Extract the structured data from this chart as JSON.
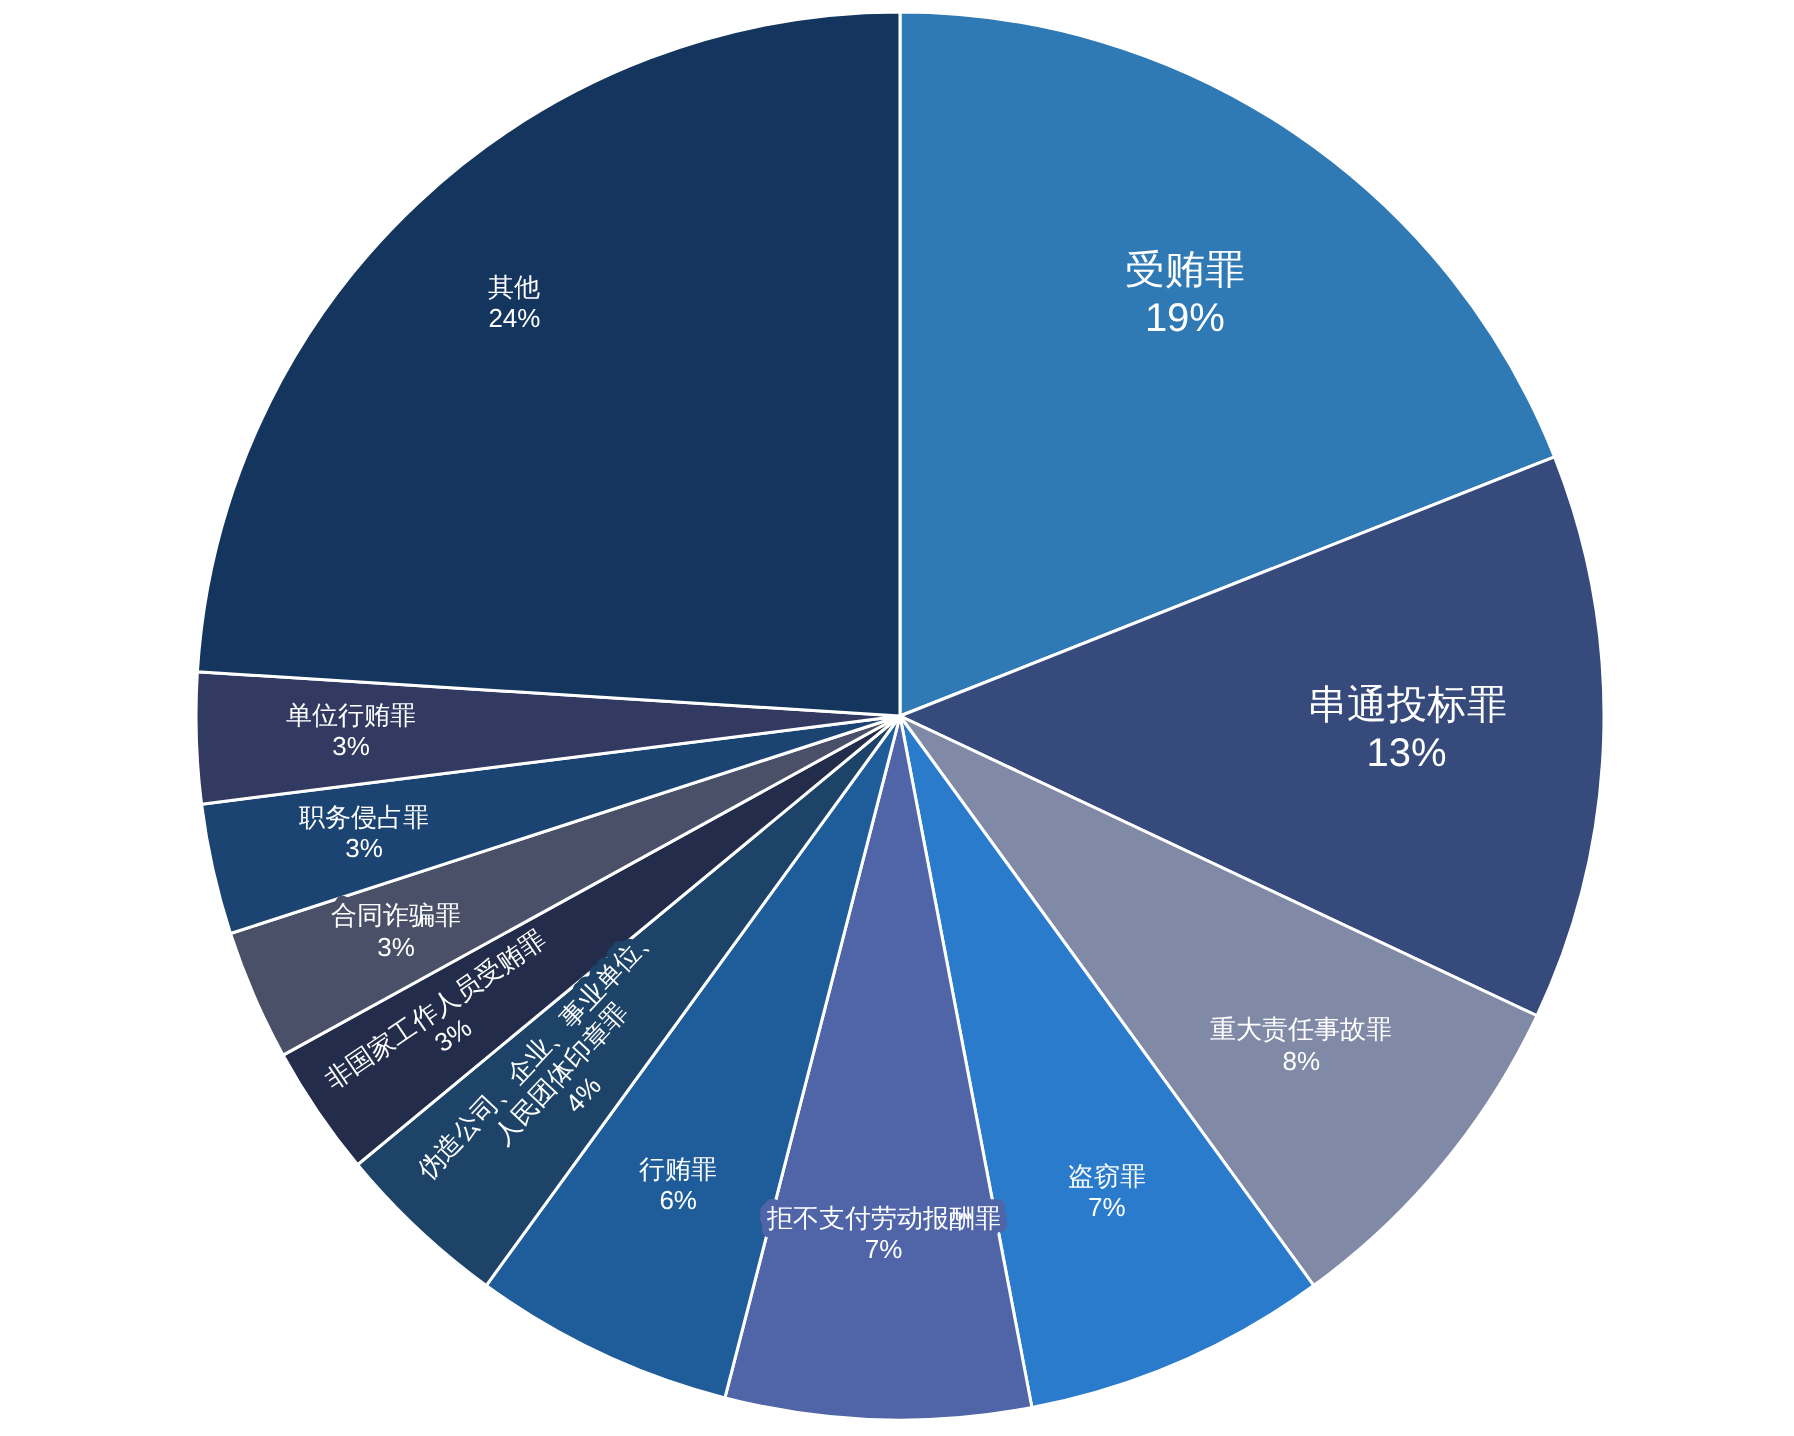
{
  "chart_data": {
    "type": "pie",
    "categories": [
      "受贿罪",
      "串通投标罪",
      "重大责任事故罪",
      "盗窃罪",
      "拒不支付劳动报酬罪",
      "行贿罪",
      "伪造公司、企业、事业单位、人民团体印章罪",
      "非国家工作人员受贿罪",
      "合同诈骗罪",
      "职务侵占罪",
      "单位行贿罪",
      "其他"
    ],
    "values": [
      19,
      13,
      8,
      7,
      7,
      6,
      4,
      3,
      3,
      3,
      3,
      24
    ],
    "colors": [
      "#2f79b5",
      "#364a7c",
      "#8089a6",
      "#2a7bcb",
      "#5065a8",
      "#1f5c9a",
      "#1d4468",
      "#232c4a",
      "#4a5068",
      "#1c4472",
      "#323a62",
      "#14365e"
    ],
    "value_labels": [
      "19%",
      "13%",
      "8%",
      "7%",
      "7%",
      "6%",
      "4%",
      "3%",
      "3%",
      "3%",
      "3%",
      "24%"
    ]
  }
}
